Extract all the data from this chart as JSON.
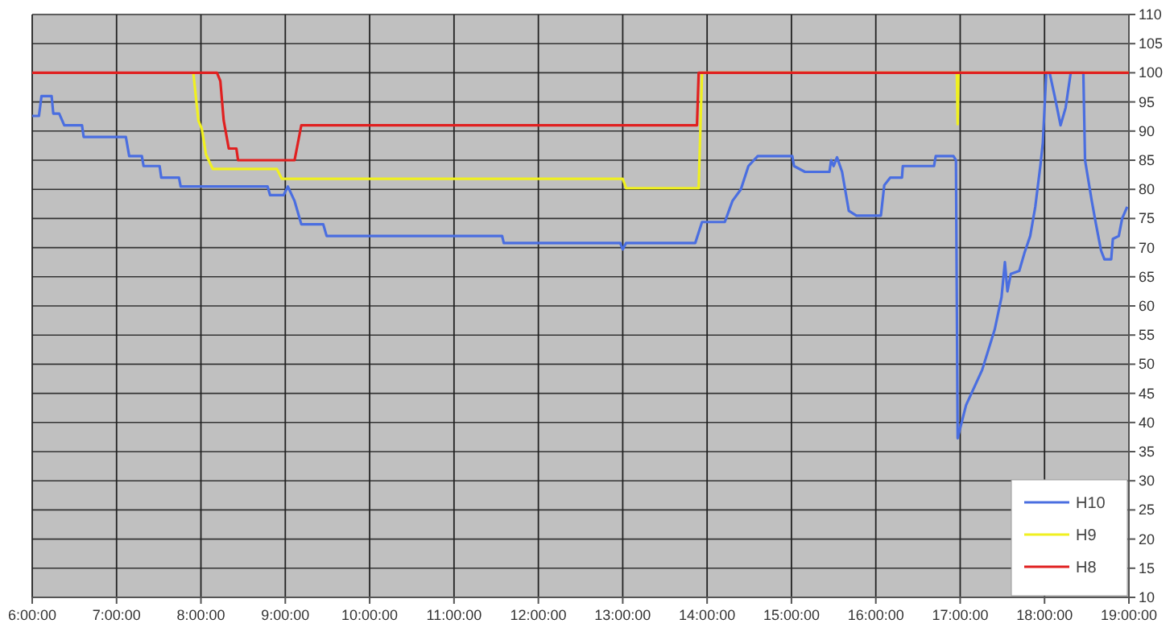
{
  "chart_data": {
    "type": "line",
    "xlim": [
      6,
      19
    ],
    "ylim": [
      10,
      110
    ],
    "xticks": [
      {
        "value": 6,
        "label": "6:00:00"
      },
      {
        "value": 7,
        "label": "7:00:00"
      },
      {
        "value": 8,
        "label": "8:00:00"
      },
      {
        "value": 9,
        "label": "9:00:00"
      },
      {
        "value": 10,
        "label": "10:00:00"
      },
      {
        "value": 11,
        "label": "11:00:00"
      },
      {
        "value": 12,
        "label": "12:00:00"
      },
      {
        "value": 13,
        "label": "13:00:00"
      },
      {
        "value": 14,
        "label": "14:00:00"
      },
      {
        "value": 15,
        "label": "15:00:00"
      },
      {
        "value": 16,
        "label": "16:00:00"
      },
      {
        "value": 17,
        "label": "17:00:00"
      },
      {
        "value": 18,
        "label": "18:00:00"
      },
      {
        "value": 19,
        "label": "19:00:00"
      }
    ],
    "yticks": [
      10,
      15,
      20,
      25,
      30,
      35,
      40,
      45,
      50,
      55,
      60,
      65,
      70,
      75,
      80,
      85,
      90,
      95,
      100,
      105,
      110
    ],
    "grid": true,
    "legend": "bottom right",
    "marker": "none",
    "line_style": "solid",
    "series": [
      {
        "name": "H10",
        "color": "#4a6ee0",
        "x": [
          6.0,
          6.08,
          6.11,
          6.23,
          6.25,
          6.32,
          6.38,
          6.59,
          6.61,
          7.11,
          7.15,
          7.3,
          7.32,
          7.51,
          7.53,
          7.74,
          7.76,
          8.79,
          8.82,
          8.98,
          9.03,
          9.11,
          9.19,
          9.45,
          9.49,
          11.57,
          11.59,
          12.97,
          13.0,
          13.04,
          13.86,
          13.94,
          14.21,
          14.3,
          14.4,
          14.49,
          14.6,
          15.01,
          15.03,
          15.16,
          15.45,
          15.47,
          15.5,
          15.54,
          15.6,
          15.68,
          15.77,
          16.06,
          16.1,
          16.17,
          16.31,
          16.32,
          16.69,
          16.71,
          16.92,
          16.95,
          16.97,
          17.07,
          17.26,
          17.41,
          17.49,
          17.53,
          17.56,
          17.6,
          17.7,
          17.76,
          17.83,
          17.89,
          17.95,
          17.98,
          18.02,
          18.06,
          18.12,
          18.19,
          18.25,
          18.31,
          18.46,
          18.48,
          18.56,
          18.61,
          18.67,
          18.71,
          18.79,
          18.81,
          18.88,
          18.92,
          18.98
        ],
        "values": [
          92.6,
          92.6,
          96,
          96,
          93,
          93,
          91,
          91,
          89,
          89,
          85.7,
          85.7,
          84,
          84,
          82,
          82,
          80.5,
          80.5,
          79,
          79,
          80.5,
          78,
          74,
          74,
          72,
          72,
          70.8,
          70.8,
          69.7,
          70.8,
          70.8,
          74.4,
          74.4,
          78,
          80,
          84,
          85.7,
          85.7,
          84,
          83,
          83,
          85,
          84,
          85.5,
          83,
          76.3,
          75.5,
          75.5,
          80.7,
          82,
          82,
          84,
          84,
          85.7,
          85.7,
          85,
          37.3,
          43,
          49,
          56,
          61.5,
          67.5,
          62.5,
          65.5,
          66,
          69,
          72,
          77,
          84,
          88,
          100,
          100,
          96,
          91,
          94,
          100,
          100,
          85,
          78,
          74,
          69.5,
          68,
          68,
          71.5,
          72,
          75,
          77
        ]
      },
      {
        "name": "H9",
        "color": "#f0f020",
        "x": [
          7.91,
          7.97,
          8.01,
          8.06,
          8.14,
          8.9,
          8.96,
          13.0,
          13.04,
          13.9,
          13.94,
          16.96,
          16.97,
          16.98,
          19.0
        ],
        "values": [
          100,
          91.8,
          90.4,
          86,
          83.5,
          83.5,
          81.8,
          81.8,
          80.2,
          80.2,
          100,
          100,
          91.2,
          100,
          100
        ]
      },
      {
        "name": "H8",
        "color": "#e02020",
        "x": [
          6.0,
          8.19,
          8.23,
          8.27,
          8.33,
          8.42,
          8.44,
          9.11,
          9.19,
          13.88,
          13.9,
          19.0
        ],
        "values": [
          100,
          100,
          98.6,
          91.8,
          87,
          87,
          85,
          85,
          91,
          91,
          100,
          100
        ]
      }
    ]
  }
}
